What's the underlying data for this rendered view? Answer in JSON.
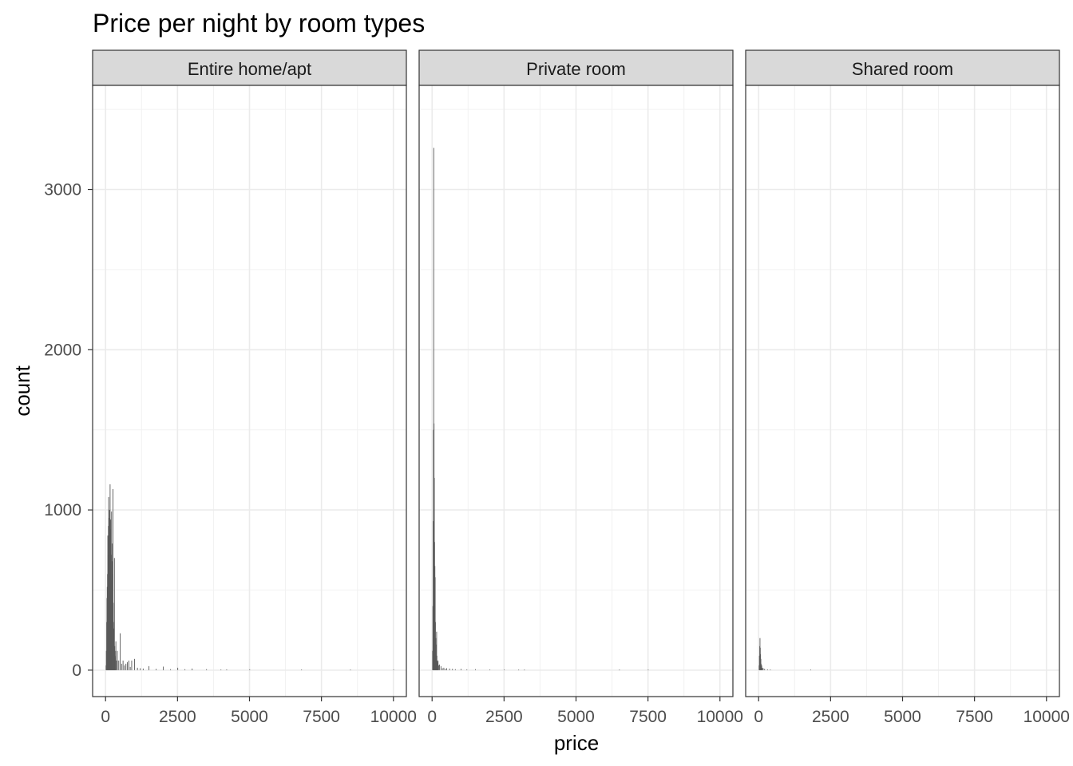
{
  "chart_data": {
    "type": "histogram",
    "title": "Price per night by room types",
    "xlabel": "price",
    "ylabel": "count",
    "xlim": [
      -450,
      10450
    ],
    "ylim": [
      -165,
      3650
    ],
    "x_ticks": [
      0,
      2500,
      5000,
      7500,
      10000
    ],
    "y_ticks": [
      0,
      1000,
      2000,
      3000
    ],
    "grid": true,
    "bar_color": "#595959",
    "panels": [
      {
        "label": "Entire home/apt",
        "bins": [
          [
            10,
            30
          ],
          [
            20,
            120
          ],
          [
            30,
            300
          ],
          [
            40,
            450
          ],
          [
            50,
            520
          ],
          [
            60,
            600
          ],
          [
            70,
            840
          ],
          [
            80,
            720
          ],
          [
            90,
            900
          ],
          [
            100,
            1080
          ],
          [
            110,
            800
          ],
          [
            120,
            950
          ],
          [
            130,
            1000
          ],
          [
            140,
            760
          ],
          [
            150,
            1160
          ],
          [
            160,
            880
          ],
          [
            170,
            940
          ],
          [
            180,
            720
          ],
          [
            190,
            560
          ],
          [
            200,
            990
          ],
          [
            210,
            680
          ],
          [
            220,
            560
          ],
          [
            230,
            790
          ],
          [
            240,
            600
          ],
          [
            250,
            1130
          ],
          [
            260,
            420
          ],
          [
            270,
            300
          ],
          [
            280,
            260
          ],
          [
            290,
            200
          ],
          [
            300,
            700
          ],
          [
            310,
            150
          ],
          [
            320,
            120
          ],
          [
            330,
            90
          ],
          [
            340,
            80
          ],
          [
            350,
            180
          ],
          [
            380,
            60
          ],
          [
            400,
            120
          ],
          [
            450,
            60
          ],
          [
            500,
            230
          ],
          [
            550,
            40
          ],
          [
            600,
            60
          ],
          [
            650,
            30
          ],
          [
            700,
            40
          ],
          [
            750,
            50
          ],
          [
            800,
            60
          ],
          [
            850,
            20
          ],
          [
            900,
            60
          ],
          [
            1000,
            70
          ],
          [
            1100,
            15
          ],
          [
            1200,
            12
          ],
          [
            1300,
            10
          ],
          [
            1500,
            25
          ],
          [
            1750,
            8
          ],
          [
            2000,
            22
          ],
          [
            2250,
            6
          ],
          [
            2500,
            15
          ],
          [
            2750,
            6
          ],
          [
            3000,
            10
          ],
          [
            3500,
            6
          ],
          [
            4000,
            4
          ],
          [
            4200,
            5
          ],
          [
            5000,
            5
          ],
          [
            6800,
            4
          ],
          [
            8500,
            3
          ],
          [
            10000,
            4
          ]
        ]
      },
      {
        "label": "Private room",
        "bins": [
          [
            10,
            120
          ],
          [
            20,
            400
          ],
          [
            30,
            930
          ],
          [
            40,
            1500
          ],
          [
            50,
            3260
          ],
          [
            60,
            1540
          ],
          [
            70,
            1200
          ],
          [
            80,
            800
          ],
          [
            90,
            650
          ],
          [
            100,
            580
          ],
          [
            110,
            300
          ],
          [
            120,
            200
          ],
          [
            130,
            160
          ],
          [
            140,
            120
          ],
          [
            150,
            240
          ],
          [
            160,
            90
          ],
          [
            170,
            60
          ],
          [
            180,
            50
          ],
          [
            190,
            40
          ],
          [
            200,
            60
          ],
          [
            220,
            30
          ],
          [
            250,
            35
          ],
          [
            300,
            25
          ],
          [
            350,
            12
          ],
          [
            400,
            15
          ],
          [
            450,
            8
          ],
          [
            500,
            12
          ],
          [
            600,
            10
          ],
          [
            700,
            8
          ],
          [
            800,
            6
          ],
          [
            1000,
            8
          ],
          [
            1200,
            5
          ],
          [
            1500,
            6
          ],
          [
            2000,
            4
          ],
          [
            2500,
            4
          ],
          [
            3000,
            3
          ],
          [
            3200,
            3
          ],
          [
            6500,
            3
          ],
          [
            7500,
            3
          ]
        ]
      },
      {
        "label": "Shared room",
        "bins": [
          [
            10,
            30
          ],
          [
            20,
            90
          ],
          [
            30,
            150
          ],
          [
            40,
            200
          ],
          [
            50,
            140
          ],
          [
            60,
            100
          ],
          [
            70,
            70
          ],
          [
            80,
            40
          ],
          [
            90,
            30
          ],
          [
            100,
            30
          ],
          [
            120,
            15
          ],
          [
            150,
            12
          ],
          [
            200,
            8
          ],
          [
            300,
            5
          ],
          [
            400,
            4
          ],
          [
            1800,
            3
          ]
        ]
      }
    ]
  }
}
